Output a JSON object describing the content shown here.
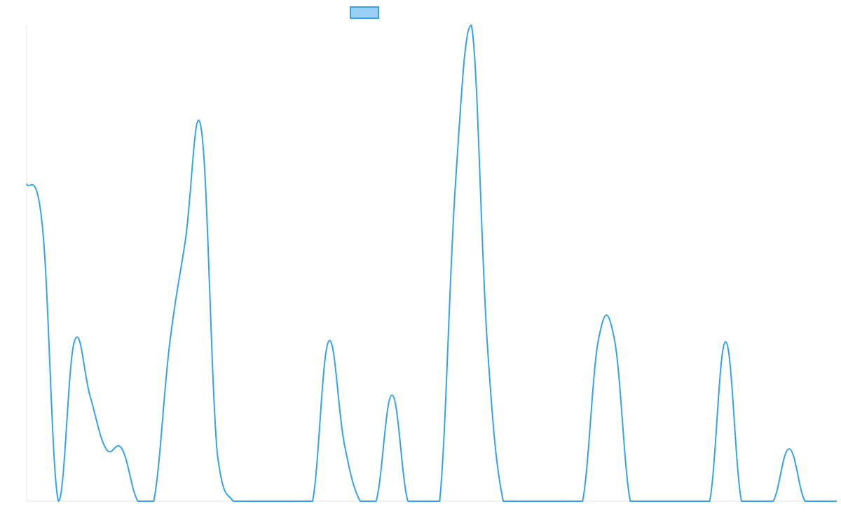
{
  "colors": {
    "line": "#36a2eb",
    "legend_fill": "#9ad0f5",
    "axis": "#e5e5e5"
  },
  "chart_data": {
    "type": "line",
    "title": "",
    "xlabel": "",
    "ylabel": "",
    "legend": {
      "position": "top",
      "label": ""
    },
    "grid": false,
    "ylim": [
      0,
      100
    ],
    "x": [
      0,
      1,
      2,
      3,
      4,
      5,
      6,
      7,
      8,
      9,
      10,
      11,
      12,
      13,
      14,
      15,
      16,
      17,
      18,
      19,
      20,
      21,
      22,
      23,
      24,
      25,
      26,
      27,
      28,
      29,
      30,
      31,
      32,
      33,
      34,
      35,
      36,
      37,
      38,
      39,
      40,
      41,
      42,
      43,
      44,
      45,
      46,
      47,
      48,
      49,
      50,
      51
    ],
    "series": [
      {
        "name": "",
        "values": [
          66.7,
          57.5,
          0,
          33.5,
          22,
          11,
          11,
          0,
          0,
          33,
          55,
          78,
          10,
          0,
          0,
          0,
          0,
          0,
          0,
          33.5,
          12,
          0,
          0,
          22.3,
          0,
          0,
          0,
          67,
          100,
          33,
          0,
          0,
          0,
          0,
          0,
          0,
          34,
          34,
          0,
          0,
          0,
          0,
          0,
          0,
          33.5,
          0,
          0,
          0,
          11,
          0,
          0,
          0
        ]
      }
    ]
  }
}
